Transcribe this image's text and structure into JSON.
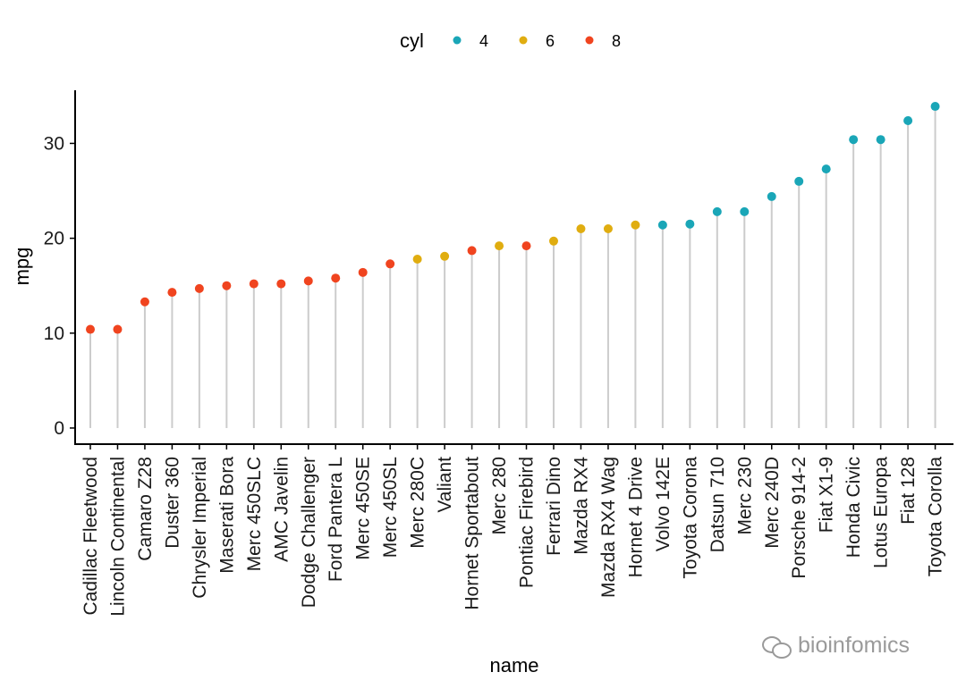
{
  "chart_data": {
    "type": "lollipop",
    "xlabel": "name",
    "ylabel": "mpg",
    "ylim": [
      -1.7,
      35.6
    ],
    "yticks": [
      0,
      10,
      20,
      30
    ],
    "grid": false,
    "legend": {
      "title": "cyl",
      "position": "top",
      "entries": [
        {
          "label": "4",
          "color": "#1aa6b7"
        },
        {
          "label": "6",
          "color": "#e0ad10"
        },
        {
          "label": "8",
          "color": "#f0441f"
        }
      ]
    },
    "points": [
      {
        "name": "Cadillac Fleetwood",
        "mpg": 10.4,
        "cyl": "8"
      },
      {
        "name": "Lincoln Continental",
        "mpg": 10.4,
        "cyl": "8"
      },
      {
        "name": "Camaro Z28",
        "mpg": 13.3,
        "cyl": "8"
      },
      {
        "name": "Duster 360",
        "mpg": 14.3,
        "cyl": "8"
      },
      {
        "name": "Chrysler Imperial",
        "mpg": 14.7,
        "cyl": "8"
      },
      {
        "name": "Maserati Bora",
        "mpg": 15.0,
        "cyl": "8"
      },
      {
        "name": "Merc 450SLC",
        "mpg": 15.2,
        "cyl": "8"
      },
      {
        "name": "AMC Javelin",
        "mpg": 15.2,
        "cyl": "8"
      },
      {
        "name": "Dodge Challenger",
        "mpg": 15.5,
        "cyl": "8"
      },
      {
        "name": "Ford Pantera L",
        "mpg": 15.8,
        "cyl": "8"
      },
      {
        "name": "Merc 450SE",
        "mpg": 16.4,
        "cyl": "8"
      },
      {
        "name": "Merc 450SL",
        "mpg": 17.3,
        "cyl": "8"
      },
      {
        "name": "Merc 280C",
        "mpg": 17.8,
        "cyl": "6"
      },
      {
        "name": "Valiant",
        "mpg": 18.1,
        "cyl": "6"
      },
      {
        "name": "Hornet Sportabout",
        "mpg": 18.7,
        "cyl": "8"
      },
      {
        "name": "Merc 280",
        "mpg": 19.2,
        "cyl": "6"
      },
      {
        "name": "Pontiac Firebird",
        "mpg": 19.2,
        "cyl": "8"
      },
      {
        "name": "Ferrari Dino",
        "mpg": 19.7,
        "cyl": "6"
      },
      {
        "name": "Mazda RX4",
        "mpg": 21.0,
        "cyl": "6"
      },
      {
        "name": "Mazda RX4 Wag",
        "mpg": 21.0,
        "cyl": "6"
      },
      {
        "name": "Hornet 4 Drive",
        "mpg": 21.4,
        "cyl": "6"
      },
      {
        "name": "Volvo 142E",
        "mpg": 21.4,
        "cyl": "4"
      },
      {
        "name": "Toyota Corona",
        "mpg": 21.5,
        "cyl": "4"
      },
      {
        "name": "Datsun 710",
        "mpg": 22.8,
        "cyl": "4"
      },
      {
        "name": "Merc 230",
        "mpg": 22.8,
        "cyl": "4"
      },
      {
        "name": "Merc 240D",
        "mpg": 24.4,
        "cyl": "4"
      },
      {
        "name": "Porsche 914-2",
        "mpg": 26.0,
        "cyl": "4"
      },
      {
        "name": "Fiat X1-9",
        "mpg": 27.3,
        "cyl": "4"
      },
      {
        "name": "Honda Civic",
        "mpg": 30.4,
        "cyl": "4"
      },
      {
        "name": "Lotus Europa",
        "mpg": 30.4,
        "cyl": "4"
      },
      {
        "name": "Fiat 128",
        "mpg": 32.4,
        "cyl": "4"
      },
      {
        "name": "Toyota Corolla",
        "mpg": 33.9,
        "cyl": "4"
      }
    ]
  },
  "watermark": {
    "text": "bioinfomics"
  }
}
